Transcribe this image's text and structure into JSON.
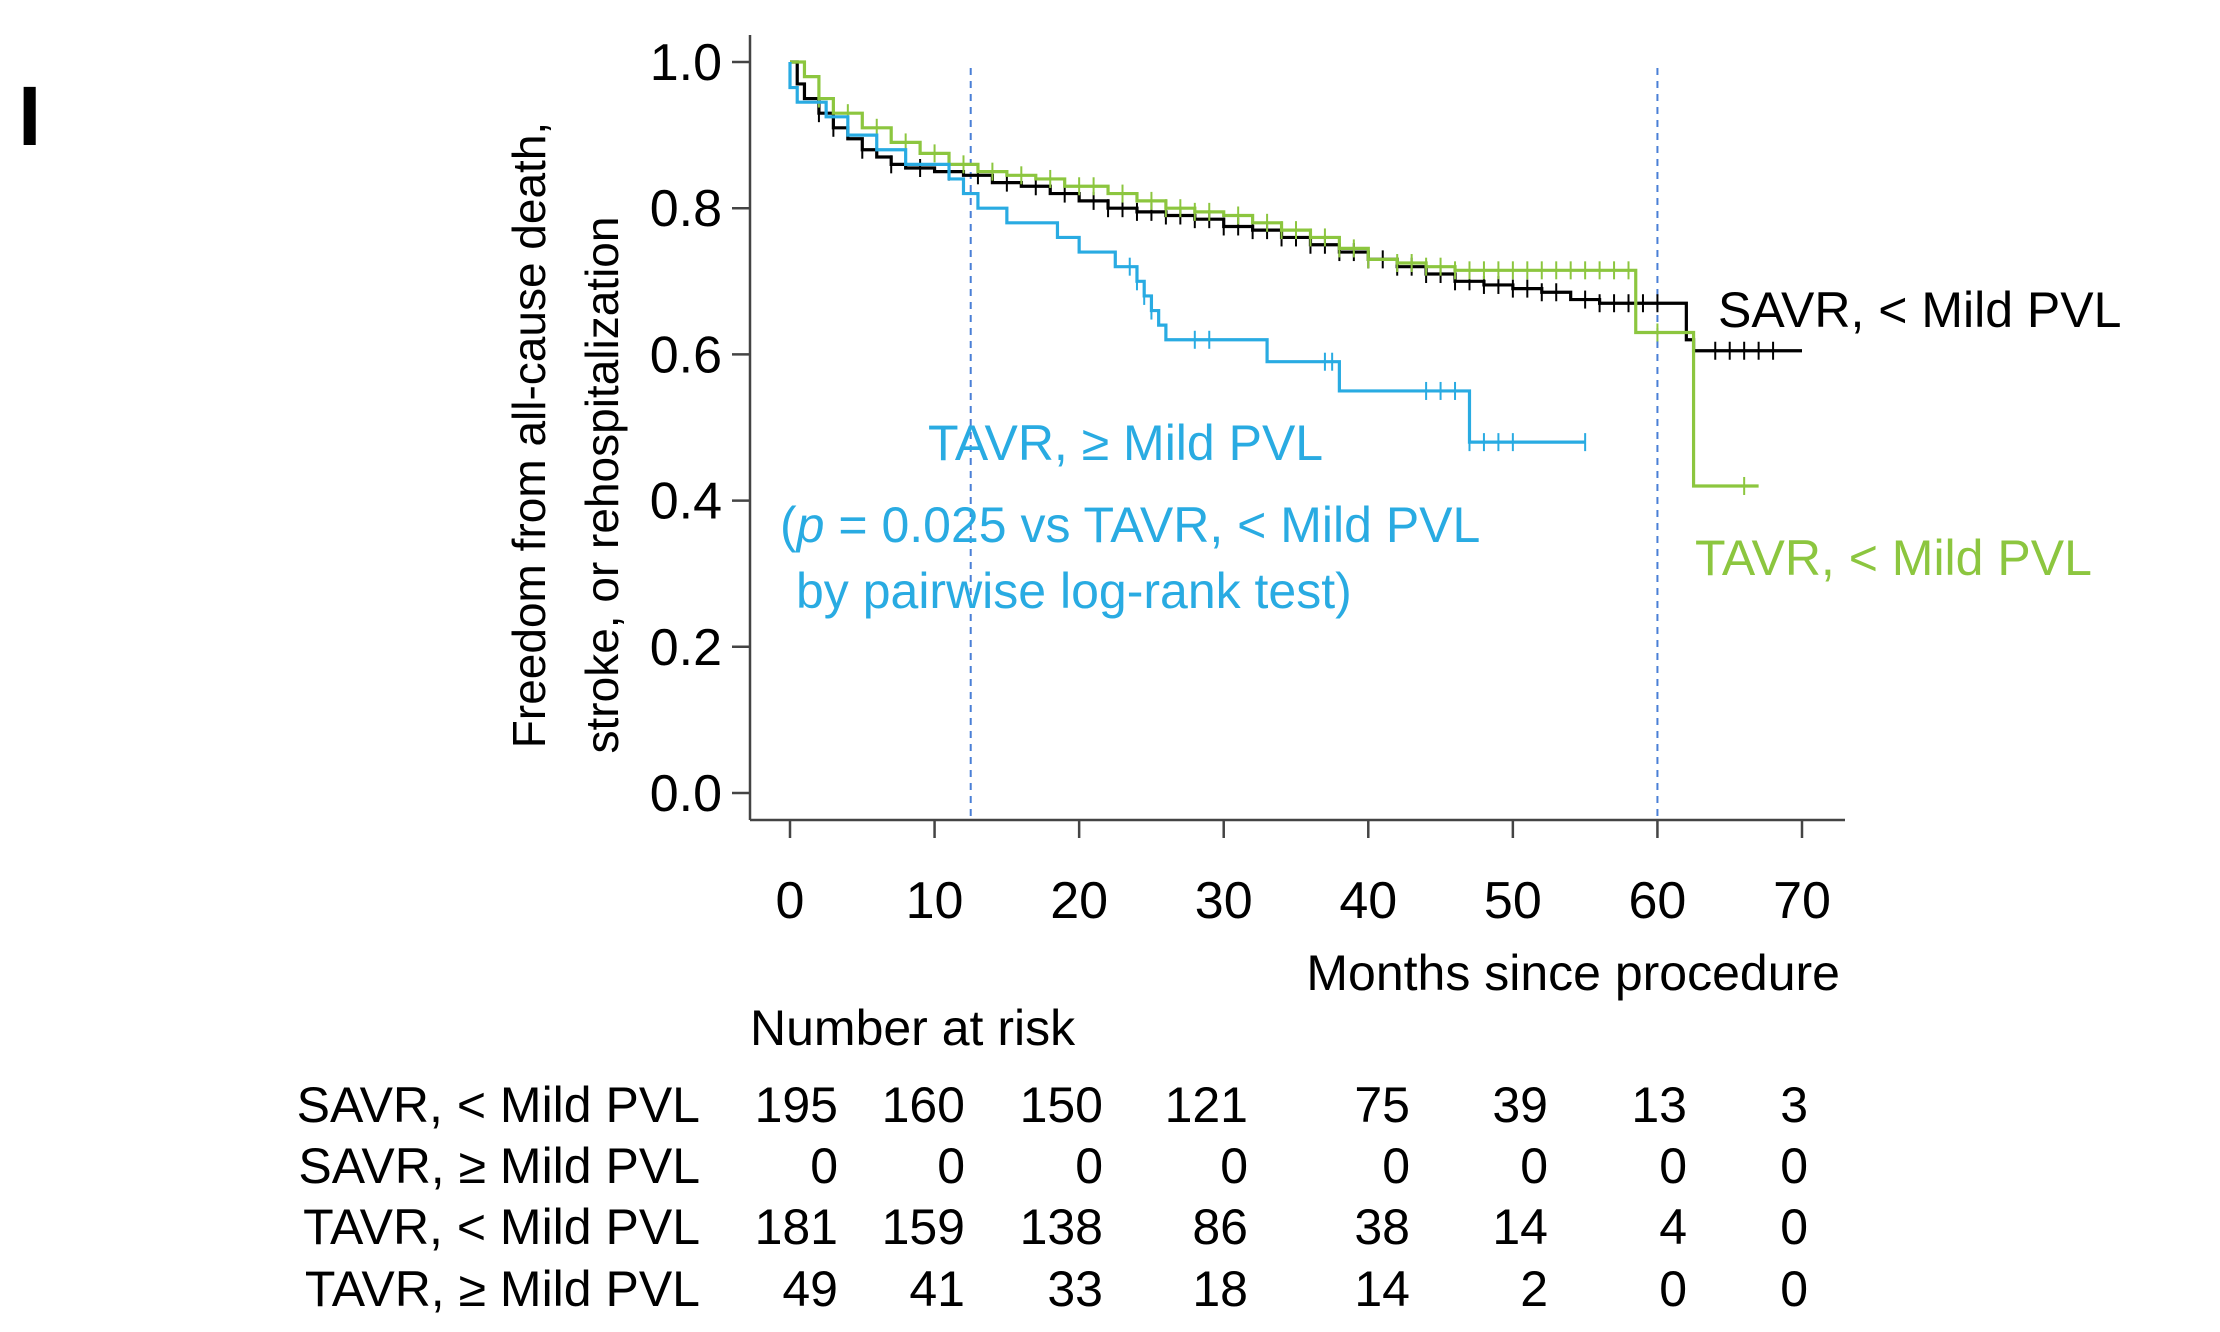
{
  "panel_label": "I",
  "chart_data": {
    "type": "line",
    "subtype": "kaplan-meier",
    "ylabel_line1": "Freedom from all-cause death,",
    "ylabel_line2": "stroke, or rehospitalization",
    "xlabel": "Months since procedure",
    "xlim": [
      0,
      70
    ],
    "ylim": [
      0,
      1.0
    ],
    "x_ticks": [
      0,
      10,
      20,
      30,
      40,
      50,
      60,
      70
    ],
    "x_tick_labels": [
      "0",
      "10",
      "20",
      "30",
      "40",
      "50",
      "60",
      "70"
    ],
    "y_ticks": [
      0,
      0.2,
      0.4,
      0.6,
      0.8,
      1.0
    ],
    "y_tick_labels": [
      "0.0",
      "0.2",
      "0.4",
      "0.6",
      "0.8",
      "1.0"
    ],
    "reference_lines_x": [
      12.5,
      60
    ],
    "series": [
      {
        "name": "SAVR, < Mild PVL",
        "label": "SAVR, < Mild PVL",
        "color": "#000000",
        "steps": [
          [
            0,
            1.0
          ],
          [
            0.5,
            0.97
          ],
          [
            1,
            0.95
          ],
          [
            2,
            0.93
          ],
          [
            3,
            0.91
          ],
          [
            4,
            0.895
          ],
          [
            5,
            0.88
          ],
          [
            6,
            0.87
          ],
          [
            7,
            0.86
          ],
          [
            8,
            0.855
          ],
          [
            10,
            0.85
          ],
          [
            12,
            0.845
          ],
          [
            14,
            0.835
          ],
          [
            16,
            0.83
          ],
          [
            18,
            0.82
          ],
          [
            20,
            0.81
          ],
          [
            22,
            0.8
          ],
          [
            24,
            0.795
          ],
          [
            26,
            0.79
          ],
          [
            28,
            0.785
          ],
          [
            30,
            0.775
          ],
          [
            32,
            0.77
          ],
          [
            34,
            0.76
          ],
          [
            36,
            0.75
          ],
          [
            38,
            0.74
          ],
          [
            40,
            0.73
          ],
          [
            42,
            0.72
          ],
          [
            44,
            0.71
          ],
          [
            46,
            0.7
          ],
          [
            48,
            0.695
          ],
          [
            50,
            0.69
          ],
          [
            52,
            0.685
          ],
          [
            54,
            0.675
          ],
          [
            56,
            0.67
          ],
          [
            60,
            0.67
          ],
          [
            62,
            0.62
          ],
          [
            62.5,
            0.605
          ],
          [
            70,
            0.605
          ]
        ],
        "censor_x": [
          2,
          3,
          5,
          7,
          9,
          11,
          13,
          15,
          17,
          19,
          21,
          22,
          23,
          24,
          25,
          26,
          27,
          28,
          29,
          30,
          31,
          32,
          33,
          34,
          35,
          36,
          37,
          38,
          39,
          40,
          41,
          42,
          43,
          44,
          45,
          46,
          47,
          48,
          49,
          50,
          51,
          52,
          53,
          55,
          56,
          57,
          58,
          59,
          60,
          64,
          65,
          66,
          67,
          68
        ]
      },
      {
        "name": "TAVR, < Mild PVL",
        "label": "TAVR, < Mild PVL",
        "color": "#8cc63f",
        "steps": [
          [
            0,
            1.0
          ],
          [
            1,
            0.98
          ],
          [
            2,
            0.95
          ],
          [
            3,
            0.93
          ],
          [
            5,
            0.91
          ],
          [
            7,
            0.89
          ],
          [
            9,
            0.875
          ],
          [
            11,
            0.86
          ],
          [
            13,
            0.85
          ],
          [
            15,
            0.845
          ],
          [
            17,
            0.84
          ],
          [
            19,
            0.83
          ],
          [
            22,
            0.82
          ],
          [
            24,
            0.81
          ],
          [
            26,
            0.8
          ],
          [
            28,
            0.795
          ],
          [
            30,
            0.79
          ],
          [
            32,
            0.78
          ],
          [
            34,
            0.77
          ],
          [
            36,
            0.76
          ],
          [
            38,
            0.745
          ],
          [
            40,
            0.73
          ],
          [
            42,
            0.725
          ],
          [
            44,
            0.72
          ],
          [
            46,
            0.715
          ],
          [
            50,
            0.715
          ],
          [
            58.5,
            0.715
          ],
          [
            58.5,
            0.63
          ],
          [
            62.5,
            0.63
          ],
          [
            62.5,
            0.42
          ],
          [
            67,
            0.42
          ]
        ],
        "censor_x": [
          2,
          4,
          6,
          8,
          10,
          12,
          14,
          16,
          18,
          20,
          21,
          23,
          25,
          26,
          27,
          28,
          29,
          31,
          33,
          34,
          35,
          36,
          37,
          38,
          39,
          40,
          42,
          43,
          44,
          45,
          46,
          47,
          48,
          49,
          50,
          51,
          52,
          53,
          54,
          55,
          56,
          57,
          58,
          60,
          66
        ]
      },
      {
        "name": "TAVR, ≥ Mild PVL",
        "label": "TAVR, ≥ Mild PVL",
        "color": "#29abe2",
        "steps": [
          [
            0,
            1.0
          ],
          [
            0,
            0.965
          ],
          [
            0.5,
            0.965
          ],
          [
            0.5,
            0.945
          ],
          [
            2.5,
            0.945
          ],
          [
            2.5,
            0.925
          ],
          [
            4,
            0.925
          ],
          [
            4,
            0.9
          ],
          [
            6,
            0.9
          ],
          [
            6,
            0.88
          ],
          [
            8,
            0.88
          ],
          [
            8,
            0.86
          ],
          [
            11,
            0.86
          ],
          [
            11,
            0.84
          ],
          [
            12,
            0.84
          ],
          [
            12,
            0.82
          ],
          [
            13,
            0.82
          ],
          [
            13,
            0.8
          ],
          [
            15,
            0.8
          ],
          [
            15,
            0.78
          ],
          [
            18.5,
            0.78
          ],
          [
            18.5,
            0.76
          ],
          [
            20,
            0.76
          ],
          [
            20,
            0.74
          ],
          [
            22.5,
            0.74
          ],
          [
            22.5,
            0.72
          ],
          [
            24,
            0.72
          ],
          [
            24,
            0.7
          ],
          [
            24.5,
            0.7
          ],
          [
            24.5,
            0.68
          ],
          [
            25,
            0.68
          ],
          [
            25,
            0.66
          ],
          [
            25.5,
            0.66
          ],
          [
            25.5,
            0.64
          ],
          [
            26,
            0.64
          ],
          [
            26,
            0.62
          ],
          [
            33,
            0.62
          ],
          [
            33,
            0.59
          ],
          [
            38,
            0.59
          ],
          [
            38,
            0.55
          ],
          [
            47,
            0.55
          ],
          [
            47,
            0.48
          ],
          [
            55,
            0.48
          ]
        ],
        "censor_x": [
          23.5,
          24,
          24.5,
          25,
          28,
          29,
          37,
          37.5,
          44,
          45,
          46,
          47,
          48,
          49,
          50,
          55
        ]
      }
    ],
    "annotations": [
      {
        "text": "TAVR, ≥ Mild PVL",
        "color": "#29abe2"
      },
      {
        "text_pre": "(",
        "text_italic": "p",
        "text_post": " = 0.025 vs TAVR, < Mild PVL",
        "color": "#29abe2"
      },
      {
        "text": "by pairwise log-rank test)",
        "color": "#29abe2"
      }
    ]
  },
  "risk_table": {
    "title": "Number at risk",
    "rows": [
      {
        "label": "SAVR, < Mild PVL",
        "values": [
          "195",
          "160",
          "150",
          "121",
          "75",
          "39",
          "13",
          "3"
        ]
      },
      {
        "label": "SAVR, ≥ Mild PVL",
        "values": [
          "0",
          "0",
          "0",
          "0",
          "0",
          "0",
          "0",
          "0"
        ]
      },
      {
        "label": "TAVR, < Mild PVL",
        "values": [
          "181",
          "159",
          "138",
          "86",
          "38",
          "14",
          "4",
          "0"
        ]
      },
      {
        "label": "TAVR, ≥ Mild PVL",
        "values": [
          "49",
          "41",
          "33",
          "18",
          "14",
          "2",
          "0",
          "0"
        ]
      }
    ]
  }
}
